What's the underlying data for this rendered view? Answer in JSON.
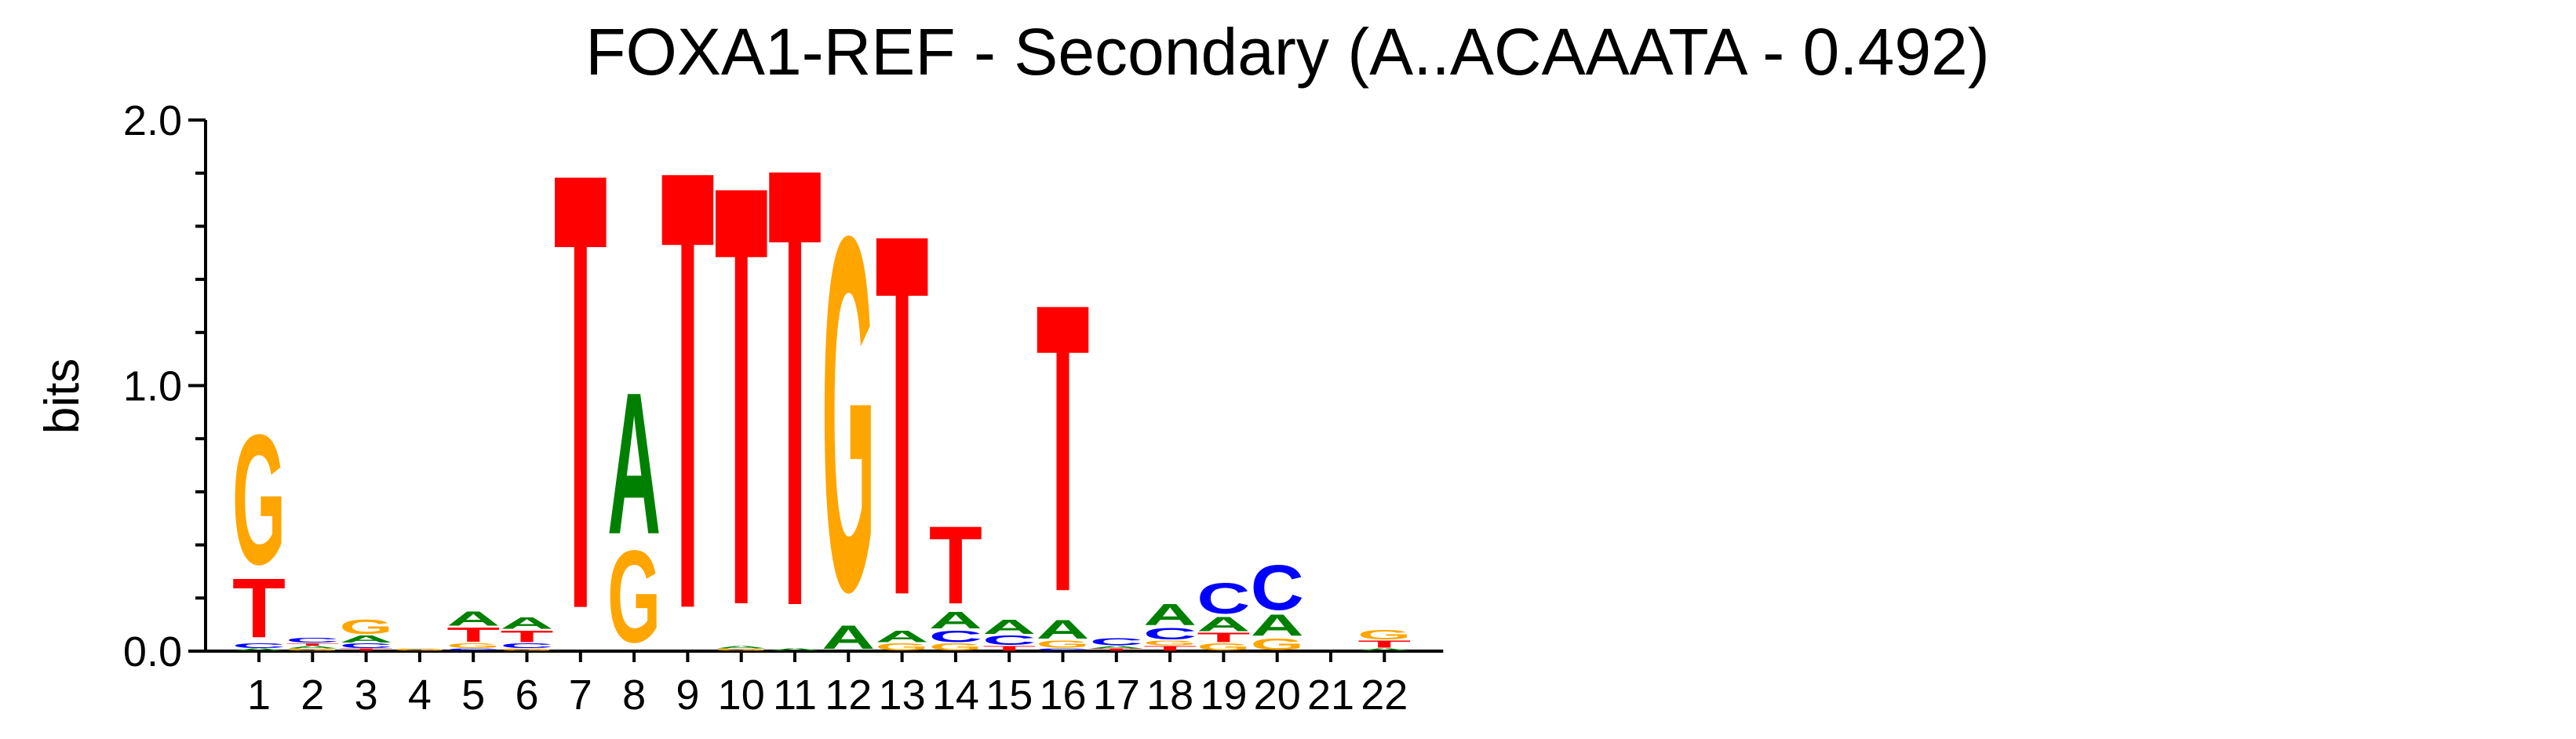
{
  "chart_data": {
    "type": "sequence-logo",
    "title": "FOXA1-REF - Secondary (A..ACAAATA - 0.492)",
    "ylabel": "bits",
    "xlabel": "",
    "ylim": [
      0,
      2
    ],
    "yticks": [
      "0.0",
      "1.0",
      "2.0"
    ],
    "grid": false,
    "colors": {
      "A": "#008000",
      "C": "#0000ff",
      "G": "#ffa500",
      "T": "#ff0000"
    },
    "positions": [
      {
        "pos": "1",
        "letters": [
          {
            "base": "A",
            "bits": 0.01
          },
          {
            "base": "C",
            "bits": 0.02
          },
          {
            "base": "T",
            "bits": 0.25
          },
          {
            "base": "G",
            "bits": 0.55
          }
        ]
      },
      {
        "pos": "2",
        "letters": [
          {
            "base": "G",
            "bits": 0.01
          },
          {
            "base": "A",
            "bits": 0.01
          },
          {
            "base": "T",
            "bits": 0.01
          },
          {
            "base": "C",
            "bits": 0.02
          }
        ]
      },
      {
        "pos": "3",
        "letters": [
          {
            "base": "T",
            "bits": 0.01
          },
          {
            "base": "C",
            "bits": 0.02
          },
          {
            "base": "A",
            "bits": 0.03
          },
          {
            "base": "G",
            "bits": 0.06
          }
        ]
      },
      {
        "pos": "4",
        "letters": [
          {
            "base": "G",
            "bits": 0.01
          }
        ]
      },
      {
        "pos": "5",
        "letters": [
          {
            "base": "C",
            "bits": 0.01
          },
          {
            "base": "G",
            "bits": 0.02
          },
          {
            "base": "T",
            "bits": 0.06
          },
          {
            "base": "A",
            "bits": 0.06
          }
        ]
      },
      {
        "pos": "6",
        "letters": [
          {
            "base": "G",
            "bits": 0.01
          },
          {
            "base": "C",
            "bits": 0.02
          },
          {
            "base": "T",
            "bits": 0.05
          },
          {
            "base": "A",
            "bits": 0.05
          }
        ]
      },
      {
        "pos": "7",
        "letters": [
          {
            "base": "T",
            "bits": 1.85
          }
        ]
      },
      {
        "pos": "8",
        "letters": [
          {
            "base": "G",
            "bits": 0.39
          },
          {
            "base": "A",
            "bits": 0.6
          }
        ]
      },
      {
        "pos": "9",
        "letters": [
          {
            "base": "T",
            "bits": 1.86
          }
        ]
      },
      {
        "pos": "10",
        "letters": [
          {
            "base": "G",
            "bits": 0.01
          },
          {
            "base": "A",
            "bits": 0.01
          },
          {
            "base": "T",
            "bits": 1.78
          }
        ]
      },
      {
        "pos": "11",
        "letters": [
          {
            "base": "A",
            "bits": 0.01
          },
          {
            "base": "T",
            "bits": 1.86
          }
        ]
      },
      {
        "pos": "12",
        "letters": [
          {
            "base": "A",
            "bits": 0.1
          },
          {
            "base": "G",
            "bits": 1.5
          }
        ]
      },
      {
        "pos": "13",
        "letters": [
          {
            "base": "G",
            "bits": 0.03
          },
          {
            "base": "A",
            "bits": 0.05
          },
          {
            "base": "T",
            "bits": 1.53
          }
        ]
      },
      {
        "pos": "14",
        "letters": [
          {
            "base": "G",
            "bits": 0.03
          },
          {
            "base": "C",
            "bits": 0.05
          },
          {
            "base": "A",
            "bits": 0.07
          },
          {
            "base": "T",
            "bits": 0.33
          }
        ]
      },
      {
        "pos": "15",
        "letters": [
          {
            "base": "T",
            "bits": 0.02
          },
          {
            "base": "C",
            "bits": 0.04
          },
          {
            "base": "A",
            "bits": 0.06
          }
        ]
      },
      {
        "pos": "16",
        "letters": [
          {
            "base": "C",
            "bits": 0.01
          },
          {
            "base": "G",
            "bits": 0.03
          },
          {
            "base": "A",
            "bits": 0.08
          },
          {
            "base": "T",
            "bits": 1.22
          }
        ]
      },
      {
        "pos": "17",
        "letters": [
          {
            "base": "T",
            "bits": 0.01
          },
          {
            "base": "A",
            "bits": 0.01
          },
          {
            "base": "C",
            "bits": 0.03
          }
        ]
      },
      {
        "pos": "18",
        "letters": [
          {
            "base": "T",
            "bits": 0.02
          },
          {
            "base": "G",
            "bits": 0.02
          },
          {
            "base": "C",
            "bits": 0.05
          },
          {
            "base": "A",
            "bits": 0.09
          }
        ]
      },
      {
        "pos": "19",
        "letters": [
          {
            "base": "G",
            "bits": 0.03
          },
          {
            "base": "T",
            "bits": 0.04
          },
          {
            "base": "A",
            "bits": 0.06
          },
          {
            "base": "C",
            "bits": 0.13
          }
        ]
      },
      {
        "pos": "20",
        "letters": [
          {
            "base": "G",
            "bits": 0.05
          },
          {
            "base": "A",
            "bits": 0.09
          },
          {
            "base": "C",
            "bits": 0.19
          }
        ]
      },
      {
        "pos": "21",
        "letters": []
      },
      {
        "pos": "22",
        "letters": [
          {
            "base": "A",
            "bits": 0.01
          },
          {
            "base": "T",
            "bits": 0.03
          },
          {
            "base": "G",
            "bits": 0.04
          }
        ]
      }
    ]
  }
}
